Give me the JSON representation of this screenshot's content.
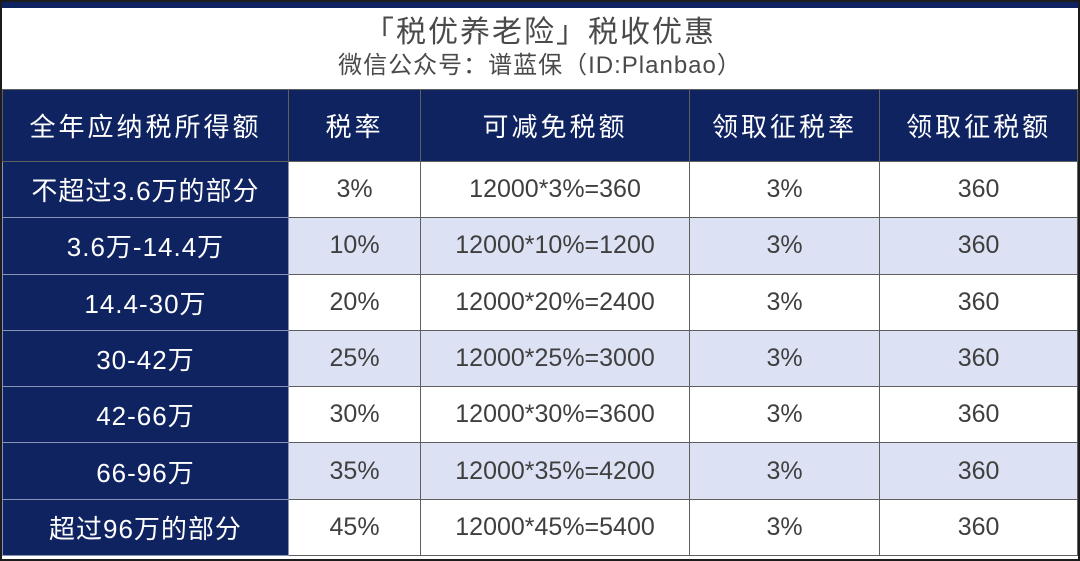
{
  "page": {
    "title": "「税优养老险」税收优惠",
    "subtitle": "微信公众号：谱蓝保（ID:Planbao）"
  },
  "colors": {
    "navy": "#0f2360",
    "stripe_row": "#dce2f3",
    "text_dark": "#3f3f3f",
    "grid_line": "#5f5f5f",
    "header_text": "#ffffff"
  },
  "table": {
    "columns": [
      "全年应纳税所得额",
      "税率",
      "可减免税额",
      "领取征税率",
      "领取征税额"
    ],
    "rows": [
      [
        "不超过3.6万的部分",
        "3%",
        "12000*3%=360",
        "3%",
        "360"
      ],
      [
        "3.6万-14.4万",
        "10%",
        "12000*10%=1200",
        "3%",
        "360"
      ],
      [
        "14.4-30万",
        "20%",
        "12000*20%=2400",
        "3%",
        "360"
      ],
      [
        "30-42万",
        "25%",
        "12000*25%=3000",
        "3%",
        "360"
      ],
      [
        "42-66万",
        "30%",
        "12000*30%=3600",
        "3%",
        "360"
      ],
      [
        "66-96万",
        "35%",
        "12000*35%=4200",
        "3%",
        "360"
      ],
      [
        "超过96万的部分",
        "45%",
        "12000*45%=5400",
        "3%",
        "360"
      ]
    ]
  }
}
